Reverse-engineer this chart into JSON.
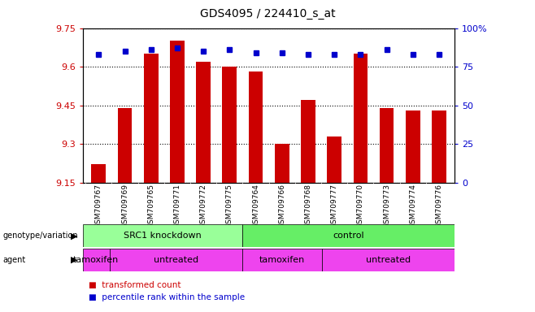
{
  "title": "GDS4095 / 224410_s_at",
  "samples": [
    "GSM709767",
    "GSM709769",
    "GSM709765",
    "GSM709771",
    "GSM709772",
    "GSM709775",
    "GSM709764",
    "GSM709766",
    "GSM709768",
    "GSM709777",
    "GSM709770",
    "GSM709773",
    "GSM709774",
    "GSM709776"
  ],
  "bar_values": [
    9.22,
    9.44,
    9.65,
    9.7,
    9.62,
    9.6,
    9.58,
    9.3,
    9.47,
    9.33,
    9.65,
    9.44,
    9.43,
    9.43
  ],
  "percentile_values": [
    83,
    85,
    86,
    87,
    85,
    86,
    84,
    84,
    83,
    83,
    83,
    86,
    83,
    83
  ],
  "ymin": 9.15,
  "ymax": 9.75,
  "yticks": [
    9.15,
    9.3,
    9.45,
    9.6,
    9.75
  ],
  "ytick_labels": [
    "9.15",
    "9.3",
    "9.45",
    "9.6",
    "9.75"
  ],
  "y2ticks": [
    0,
    25,
    50,
    75,
    100
  ],
  "y2tick_labels": [
    "0",
    "25",
    "50",
    "75",
    "100%"
  ],
  "bar_color": "#cc0000",
  "percentile_color": "#0000cc",
  "axis_label_color_left": "#cc0000",
  "axis_label_color_right": "#0000cc",
  "geno_groups": [
    {
      "label": "SRC1 knockdown",
      "start": 0,
      "end": 6,
      "color": "#99ff99"
    },
    {
      "label": "control",
      "start": 6,
      "end": 14,
      "color": "#66ee66"
    }
  ],
  "agent_groups": [
    {
      "label": "tamoxifen",
      "start": 0,
      "end": 1,
      "color": "#ee44ee"
    },
    {
      "label": "untreated",
      "start": 1,
      "end": 6,
      "color": "#ee44ee"
    },
    {
      "label": "tamoxifen",
      "start": 6,
      "end": 9,
      "color": "#ee44ee"
    },
    {
      "label": "untreated",
      "start": 9,
      "end": 14,
      "color": "#ee44ee"
    }
  ]
}
